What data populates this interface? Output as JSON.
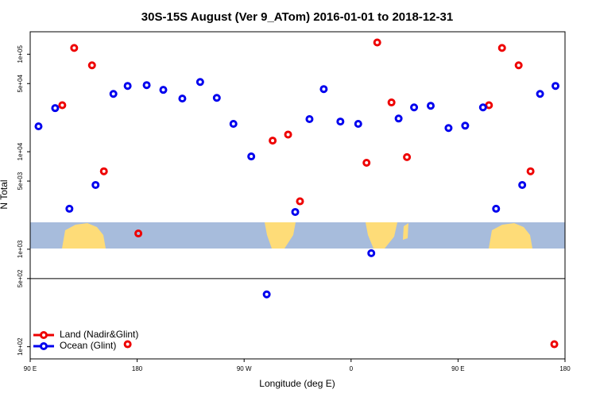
{
  "chart_data": {
    "type": "scatter",
    "title": "30S-15S August (Ver 9_ATom)   2016-01-01 to 2018-12-31",
    "xlabel": "Longitude (deg E)",
    "ylabel": "N Total",
    "xlim": [
      90,
      540
    ],
    "xticks": [
      {
        "value": 90,
        "label": "90 E"
      },
      180,
      {
        "value": 270,
        "label": "90 W"
      },
      {
        "value": 360,
        "label": "0"
      },
      {
        "value": 450,
        "label": "90 E"
      },
      {
        "value": 540,
        "label": "180"
      }
    ],
    "ylim": [
      75,
      170000
    ],
    "log_y": true,
    "yticks": [
      {
        "value": 100,
        "label": "1e+02"
      },
      {
        "value": 500,
        "label": "5e+02"
      },
      {
        "value": 1000,
        "label": "1e+03"
      },
      {
        "value": 5000,
        "label": "5e+03"
      },
      {
        "value": 10000,
        "label": "1e+04"
      },
      {
        "value": 50000,
        "label": "5e+04"
      },
      {
        "value": 100000,
        "label": "1e+05"
      }
    ],
    "hline": 500,
    "legend": "bottom-left",
    "series": [
      {
        "name": "Land (Nadir&Glint)",
        "color": "#ee0000",
        "x": [
          117,
          127,
          142,
          152,
          181,
          294,
          307,
          317,
          373,
          382,
          394,
          407,
          476,
          487,
          501,
          511,
          172,
          531
        ],
        "values": [
          30000,
          116000,
          77000,
          6300,
          1450,
          13000,
          15000,
          3100,
          7700,
          132000,
          32000,
          8800,
          30000,
          116000,
          77000,
          6300,
          106,
          106
        ]
      },
      {
        "name": "Ocean (Glint)",
        "color": "#0000ee",
        "x": [
          97,
          111,
          123,
          145,
          160,
          172,
          188,
          202,
          218,
          233,
          247,
          261,
          276,
          289,
          313,
          325,
          337,
          351,
          366,
          377,
          400,
          413,
          427,
          442,
          456,
          471,
          482,
          504,
          519,
          532
        ],
        "values": [
          18200,
          28000,
          2600,
          4560,
          39200,
          47300,
          48200,
          43100,
          35100,
          51900,
          35700,
          19300,
          8940,
          344,
          2410,
          21600,
          43900,
          20400,
          19300,
          910,
          21900,
          28500,
          29600,
          17500,
          18500,
          28500,
          2600,
          4560,
          39200,
          47300
        ]
      }
    ]
  }
}
